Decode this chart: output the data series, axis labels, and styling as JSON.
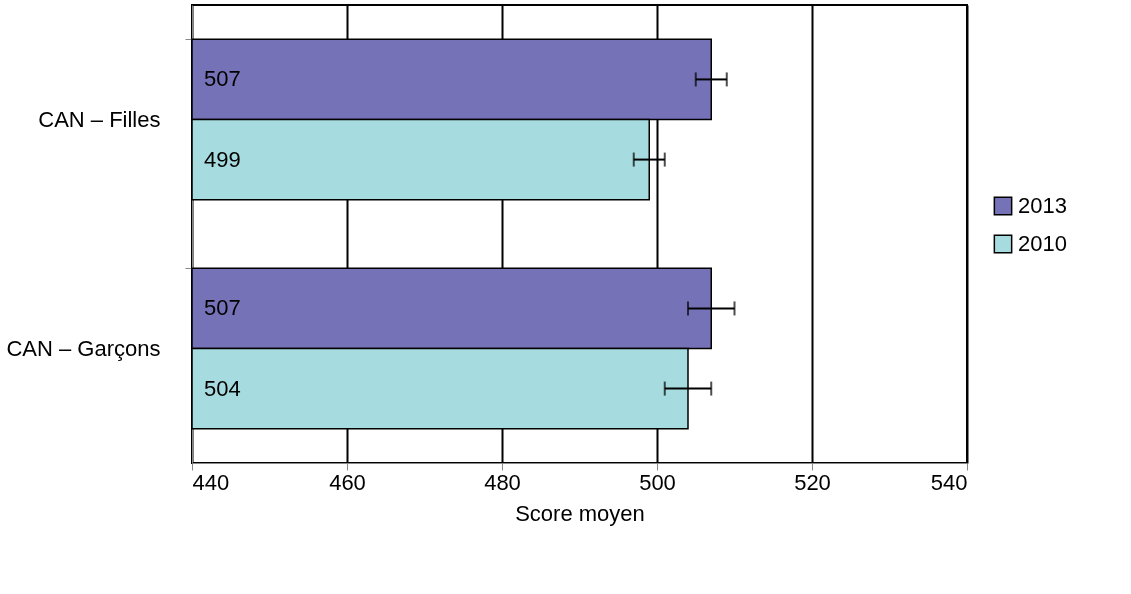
{
  "chart_data": {
    "type": "bar",
    "orientation": "horizontal",
    "xlabel": "Score moyen",
    "categories": [
      "CAN – Filles",
      "CAN – Garçons"
    ],
    "series": [
      {
        "name": "2013",
        "color": "#7672b8",
        "values": [
          507,
          507
        ],
        "errors": [
          2,
          3
        ]
      },
      {
        "name": "2010",
        "color": "#a6dcdf",
        "values": [
          499,
          504
        ],
        "errors": [
          2,
          3
        ]
      }
    ],
    "xlim": [
      440,
      540
    ],
    "xticks": [
      440,
      460,
      480,
      500,
      520,
      540
    ],
    "grid": "x",
    "legend": "right",
    "data_labels": true
  }
}
